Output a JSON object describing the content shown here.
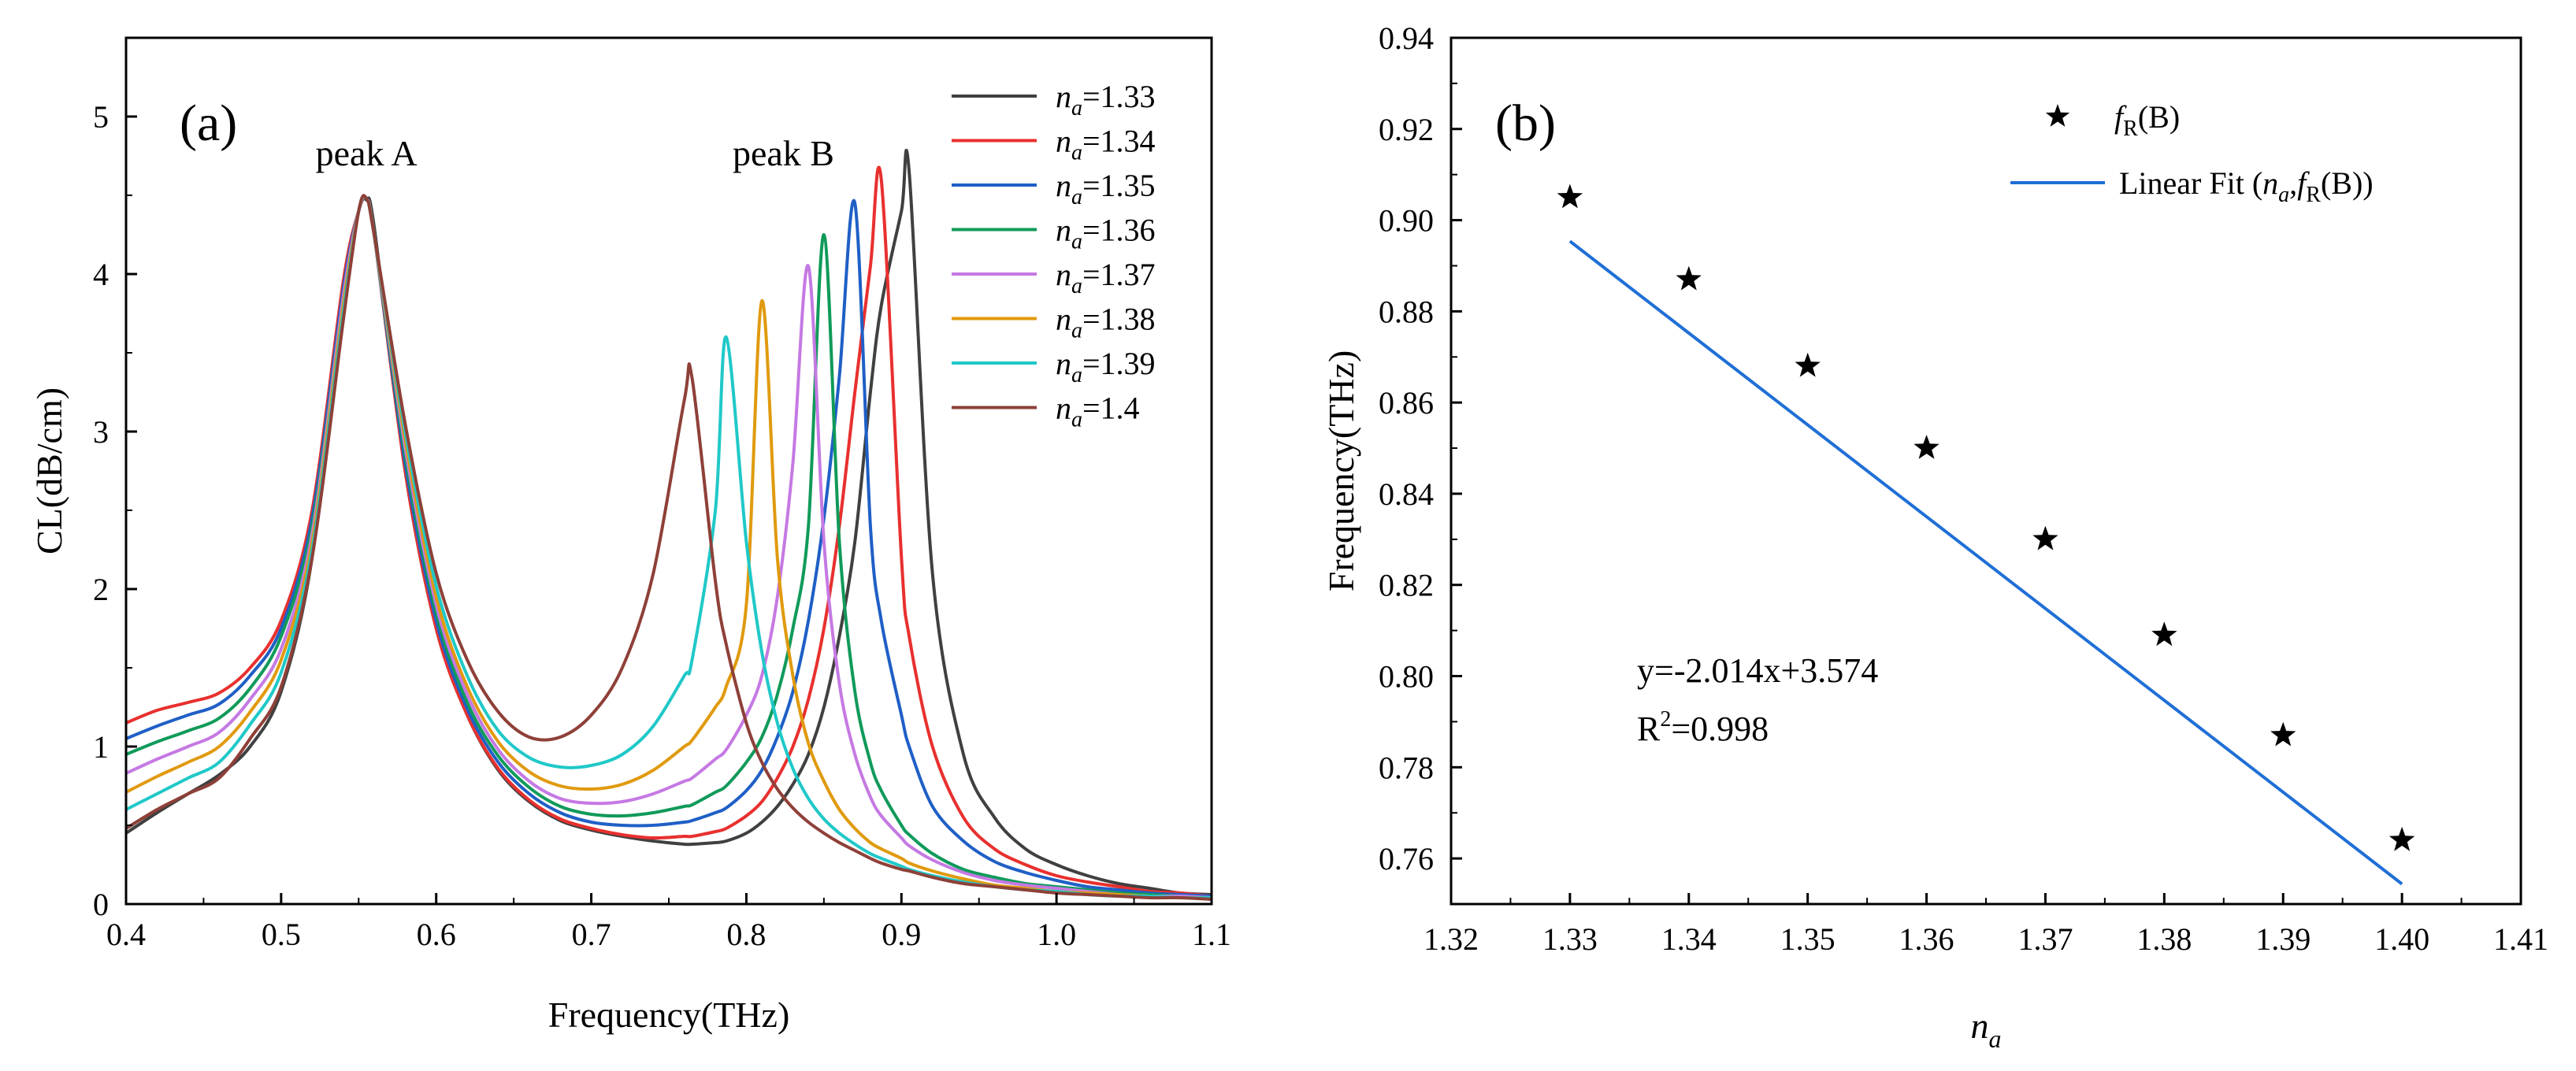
{
  "chart_data": [
    {
      "type": "line",
      "panel_label": "(a)",
      "xlabel": "Frequency(THz)",
      "ylabel": "CL(dB/cm)",
      "xlim": [
        0.4,
        1.1
      ],
      "ylim": [
        0,
        5.5
      ],
      "x_ticks": [
        0.4,
        0.5,
        0.6,
        0.7,
        0.8,
        0.9,
        1.0,
        1.1
      ],
      "x_tick_labels": [
        "0.4",
        "0.5",
        "0.6",
        "0.7",
        "0.8",
        "0.9",
        "1.0",
        "1.1"
      ],
      "y_ticks": [
        0,
        1,
        2,
        3,
        4,
        5
      ],
      "y_tick_labels": [
        "0",
        "1",
        "2",
        "3",
        "4",
        "5"
      ],
      "annotations": [
        {
          "text": "peak A",
          "x": 0.555,
          "y": 4.75
        },
        {
          "text": "peak B",
          "x": 0.83,
          "y": 4.75
        }
      ],
      "legend_position": "top-right",
      "legend_symbol": "n",
      "legend_subscript": "a",
      "x": [
        0.4,
        0.42,
        0.44,
        0.46,
        0.48,
        0.5,
        0.52,
        0.54,
        0.55,
        0.555,
        0.56,
        0.58,
        0.6,
        0.62,
        0.64,
        0.66,
        0.68,
        0.7,
        0.72,
        0.74,
        0.76,
        0.765,
        0.78,
        0.787,
        0.8,
        0.81,
        0.82,
        0.83,
        0.84,
        0.85,
        0.86,
        0.87,
        0.88,
        0.887,
        0.9,
        0.905,
        0.92,
        0.94,
        0.96,
        0.98,
        1.0,
        1.02,
        1.04,
        1.06,
        1.08,
        1.1
      ],
      "series": [
        {
          "name": "=1.33",
          "color": "#404040",
          "values": [
            0.45,
            0.58,
            0.7,
            0.82,
            1.0,
            1.35,
            2.2,
            3.9,
            4.4,
            4.47,
            4.3,
            2.75,
            1.75,
            1.2,
            0.85,
            0.65,
            0.53,
            0.47,
            0.43,
            0.4,
            0.38,
            0.38,
            0.39,
            0.4,
            0.45,
            0.52,
            0.62,
            0.76,
            0.95,
            1.25,
            1.7,
            2.3,
            3.25,
            3.8,
            4.4,
            4.65,
            2.1,
            0.95,
            0.55,
            0.35,
            0.25,
            0.18,
            0.13,
            0.1,
            0.07,
            0.06
          ]
        },
        {
          "name": "=1.34",
          "color": "#e8302e",
          "values": [
            1.15,
            1.23,
            1.28,
            1.34,
            1.5,
            1.8,
            2.5,
            3.95,
            4.4,
            4.48,
            4.25,
            2.75,
            1.75,
            1.2,
            0.86,
            0.66,
            0.54,
            0.48,
            0.44,
            0.42,
            0.43,
            0.43,
            0.46,
            0.48,
            0.56,
            0.65,
            0.8,
            1.0,
            1.3,
            1.75,
            2.4,
            3.25,
            4.05,
            4.6,
            2.2,
            1.7,
            1.0,
            0.55,
            0.35,
            0.25,
            0.18,
            0.14,
            0.11,
            0.08,
            0.07,
            0.05
          ]
        },
        {
          "name": "=1.35",
          "color": "#1f5fc6",
          "values": [
            1.05,
            1.13,
            1.2,
            1.27,
            1.45,
            1.75,
            2.45,
            3.9,
            4.4,
            4.48,
            4.25,
            2.8,
            1.8,
            1.24,
            0.9,
            0.7,
            0.58,
            0.52,
            0.5,
            0.5,
            0.52,
            0.53,
            0.58,
            0.61,
            0.72,
            0.85,
            1.06,
            1.35,
            1.8,
            2.45,
            3.35,
            4.45,
            2.4,
            1.8,
            1.2,
            1.0,
            0.62,
            0.4,
            0.27,
            0.2,
            0.15,
            0.11,
            0.09,
            0.07,
            0.06,
            0.05
          ]
        },
        {
          "name": "=1.36",
          "color": "#109a5a",
          "values": [
            0.95,
            1.03,
            1.1,
            1.18,
            1.37,
            1.7,
            2.4,
            3.85,
            4.4,
            4.48,
            4.25,
            2.85,
            1.85,
            1.28,
            0.94,
            0.74,
            0.62,
            0.57,
            0.56,
            0.58,
            0.62,
            0.63,
            0.71,
            0.75,
            0.9,
            1.06,
            1.33,
            1.75,
            2.4,
            4.25,
            2.3,
            1.35,
            0.9,
            0.72,
            0.5,
            0.44,
            0.32,
            0.22,
            0.17,
            0.13,
            0.11,
            0.09,
            0.07,
            0.06,
            0.05,
            0.04
          ]
        },
        {
          "name": "=1.37",
          "color": "#c579e3",
          "values": [
            0.83,
            0.92,
            1.0,
            1.09,
            1.3,
            1.62,
            2.35,
            3.85,
            4.4,
            4.48,
            4.25,
            2.9,
            1.9,
            1.33,
            0.98,
            0.78,
            0.67,
            0.64,
            0.65,
            0.7,
            0.78,
            0.8,
            0.92,
            0.98,
            1.2,
            1.45,
            1.95,
            2.8,
            4.05,
            2.3,
            1.4,
            0.95,
            0.68,
            0.56,
            0.42,
            0.37,
            0.28,
            0.2,
            0.15,
            0.12,
            0.1,
            0.08,
            0.06,
            0.05,
            0.05,
            0.04
          ]
        },
        {
          "name": "=1.38",
          "color": "#e09a0e",
          "values": [
            0.71,
            0.81,
            0.9,
            1.0,
            1.22,
            1.55,
            2.3,
            3.8,
            4.4,
            4.48,
            4.25,
            2.95,
            1.95,
            1.38,
            1.03,
            0.84,
            0.75,
            0.73,
            0.76,
            0.85,
            1.0,
            1.04,
            1.25,
            1.38,
            1.9,
            3.83,
            2.2,
            1.45,
            1.02,
            0.78,
            0.6,
            0.48,
            0.39,
            0.35,
            0.29,
            0.26,
            0.21,
            0.16,
            0.12,
            0.1,
            0.08,
            0.07,
            0.06,
            0.05,
            0.04,
            0.04
          ]
        },
        {
          "name": "=1.39",
          "color": "#20c8c8",
          "values": [
            0.6,
            0.7,
            0.8,
            0.9,
            1.14,
            1.47,
            2.25,
            3.75,
            4.4,
            4.48,
            4.25,
            3.0,
            2.02,
            1.45,
            1.1,
            0.93,
            0.87,
            0.88,
            0.95,
            1.13,
            1.45,
            1.55,
            2.5,
            3.6,
            2.3,
            1.6,
            1.15,
            0.86,
            0.67,
            0.54,
            0.45,
            0.38,
            0.32,
            0.29,
            0.24,
            0.22,
            0.18,
            0.14,
            0.11,
            0.09,
            0.08,
            0.06,
            0.05,
            0.05,
            0.04,
            0.04
          ]
        },
        {
          "name": "=1.4",
          "color": "#8e4038",
          "values": [
            0.48,
            0.6,
            0.7,
            0.8,
            1.05,
            1.38,
            2.2,
            3.7,
            4.4,
            4.48,
            4.25,
            3.05,
            2.1,
            1.55,
            1.22,
            1.06,
            1.06,
            1.2,
            1.5,
            2.1,
            3.2,
            3.34,
            2.05,
            1.65,
            1.15,
            0.9,
            0.73,
            0.61,
            0.52,
            0.45,
            0.39,
            0.34,
            0.29,
            0.26,
            0.22,
            0.21,
            0.17,
            0.13,
            0.11,
            0.09,
            0.07,
            0.06,
            0.05,
            0.04,
            0.04,
            0.03
          ]
        }
      ]
    },
    {
      "type": "scatter",
      "panel_label": "(b)",
      "xlabel": "n",
      "xlabel_subscript": "a",
      "ylabel": "Frequency(THz)",
      "xlim": [
        1.32,
        1.41
      ],
      "ylim": [
        0.75,
        0.94
      ],
      "x_ticks": [
        1.32,
        1.33,
        1.34,
        1.35,
        1.36,
        1.37,
        1.38,
        1.39,
        1.4,
        1.41
      ],
      "x_tick_labels": [
        "1.32",
        "1.33",
        "1.34",
        "1.35",
        "1.36",
        "1.37",
        "1.38",
        "1.39",
        "1.40",
        "1.41"
      ],
      "y_ticks": [
        0.76,
        0.78,
        0.8,
        0.82,
        0.84,
        0.86,
        0.88,
        0.9,
        0.92,
        0.94
      ],
      "y_tick_labels": [
        "0.76",
        "0.78",
        "0.80",
        "0.82",
        "0.84",
        "0.86",
        "0.88",
        "0.90",
        "0.92",
        "0.94"
      ],
      "legend_position": "top-right",
      "legend": {
        "points_label_f": "f",
        "points_label_sub": "R",
        "points_label_rest": "(B)",
        "fit_label_pre": "Linear Fit (",
        "fit_label_n": "n",
        "fit_label_a": "a",
        "fit_label_comma": ",",
        "fit_label_f": "f",
        "fit_label_sub": "R",
        "fit_label_rest": "(B))"
      },
      "points": {
        "color": "#000000",
        "x": [
          1.33,
          1.34,
          1.35,
          1.36,
          1.37,
          1.38,
          1.39,
          1.4
        ],
        "y": [
          0.905,
          0.887,
          0.868,
          0.85,
          0.83,
          0.809,
          0.787,
          0.764
        ]
      },
      "fit": {
        "color": "#1f6fd6",
        "slope": -2.014,
        "intercept": 3.574,
        "x_range": [
          1.33,
          1.4
        ]
      },
      "equation_text": "y=-2.014x+3.574",
      "r2_prefix": "R",
      "r2_sup": "2",
      "r2_rest": "=0.998"
    }
  ]
}
